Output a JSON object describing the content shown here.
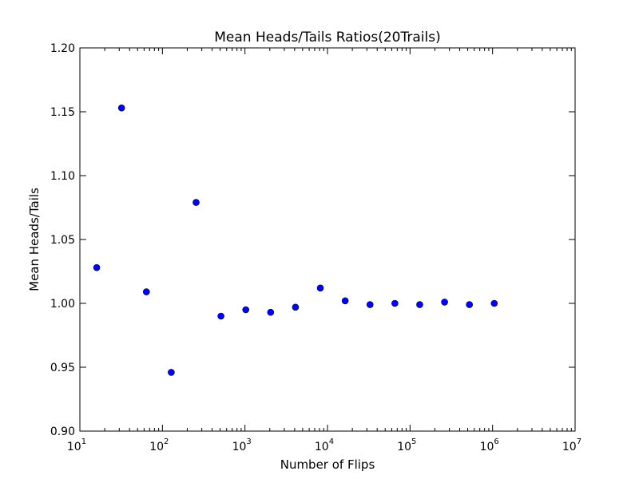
{
  "chart_data": {
    "type": "scatter",
    "title": "Mean Heads/Tails Ratios(20Trails)",
    "xlabel": "Number of Flips",
    "ylabel": "Mean Heads/Tails",
    "xscale": "log",
    "xlim": [
      10,
      10000000
    ],
    "ylim": [
      0.9,
      1.2
    ],
    "grid": false,
    "legend": "none",
    "marker_color": "#0000ff",
    "x_ticks": [
      {
        "base": "10",
        "exp": "1"
      },
      {
        "base": "10",
        "exp": "2"
      },
      {
        "base": "10",
        "exp": "3"
      },
      {
        "base": "10",
        "exp": "4"
      },
      {
        "base": "10",
        "exp": "5"
      },
      {
        "base": "10",
        "exp": "6"
      },
      {
        "base": "10",
        "exp": "7"
      }
    ],
    "y_ticks": [
      "0.90",
      "0.95",
      "1.00",
      "1.05",
      "1.10",
      "1.15",
      "1.20"
    ],
    "x": [
      16,
      32,
      64,
      128,
      256,
      512,
      1024,
      2048,
      4096,
      8192,
      16384,
      32768,
      65536,
      131072,
      262144,
      524288,
      1048576
    ],
    "y": [
      1.028,
      1.153,
      1.009,
      0.946,
      1.079,
      0.99,
      0.995,
      0.993,
      0.997,
      1.012,
      1.002,
      0.999,
      1.0,
      0.999,
      1.001,
      0.999,
      1.0
    ]
  }
}
